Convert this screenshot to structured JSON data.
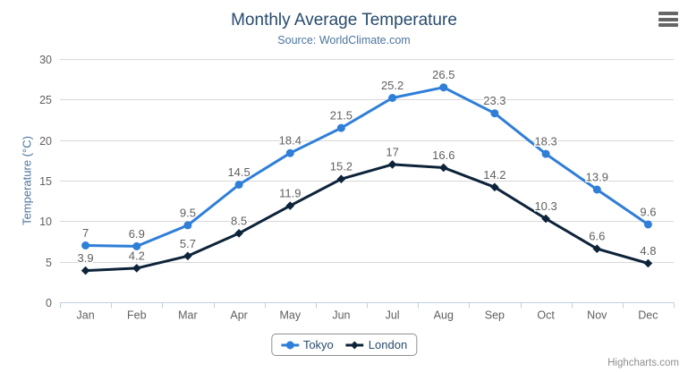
{
  "chart": {
    "title": "Monthly Average Temperature",
    "subtitle": "Source: WorldClimate.com",
    "credits": "Highcharts.com"
  },
  "chart_data": {
    "type": "line",
    "title": "Monthly Average Temperature",
    "subtitle": "Source: WorldClimate.com",
    "categories": [
      "Jan",
      "Feb",
      "Mar",
      "Apr",
      "May",
      "Jun",
      "Jul",
      "Aug",
      "Sep",
      "Oct",
      "Nov",
      "Dec"
    ],
    "series": [
      {
        "name": "Tokyo",
        "color": "#2f7ed8",
        "marker": "circle",
        "values": [
          7,
          6.9,
          9.5,
          14.5,
          18.4,
          21.5,
          25.2,
          26.5,
          23.3,
          18.3,
          13.9,
          9.6
        ]
      },
      {
        "name": "London",
        "color": "#0d233a",
        "marker": "diamond",
        "values": [
          3.9,
          4.2,
          5.7,
          8.5,
          11.9,
          15.2,
          17,
          16.6,
          14.2,
          10.3,
          6.6,
          4.8
        ]
      }
    ],
    "xlabel": "",
    "ylabel": "Temperature (°C)",
    "ylim": [
      0,
      30
    ],
    "yticks": [
      0,
      5,
      10,
      15,
      20,
      25,
      30
    ],
    "grid": true,
    "legend_position": "bottom",
    "data_labels": true
  },
  "styles": {
    "background": "#ffffff",
    "title_color": "#274b6d",
    "subtitle_color": "#4d759e",
    "axis_title_color": "#4d759e",
    "label_color": "#606060",
    "data_label_color": "#606060",
    "grid_color": "#d8d8d8",
    "axis_line_color": "#c0d0e0",
    "legend_border_color": "#909090",
    "legend_text_color": "#274b6d",
    "credits_color": "#909090",
    "menu_icon_color": "#666666"
  }
}
